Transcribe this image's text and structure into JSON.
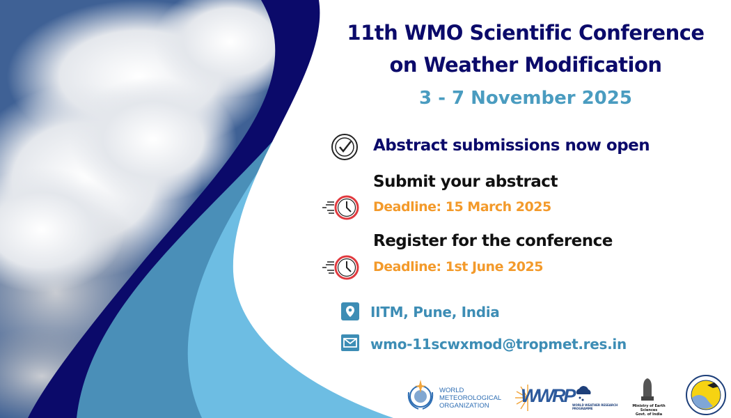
{
  "header": {
    "title_line1": "11th WMO Scientific Conference",
    "title_line2": "on Weather Modification",
    "dates": "3 - 7 November 2025"
  },
  "announcement": {
    "icon": "check-circle-icon",
    "text": "Abstract submissions now open"
  },
  "deadlines": [
    {
      "icon": "fast-clock-icon",
      "heading": "Submit your abstract",
      "deadline": "Deadline: 15 March 2025"
    },
    {
      "icon": "fast-clock-icon",
      "heading": "Register for the conference",
      "deadline": "Deadline: 1st June 2025"
    }
  ],
  "contact": {
    "location_icon": "map-pin-icon",
    "location": "IITM, Pune, India",
    "email_icon": "envelope-icon",
    "email": "wmo-11scwxmod@tropmet.res.in"
  },
  "logos": {
    "wmo": [
      "WORLD",
      "METEOROLOGICAL",
      "ORGANIZATION"
    ],
    "wwrp": "WWRP",
    "wwrp_sub": "WORLD WEATHER RESEARCH PROGRAMME",
    "moes": [
      "Ministry of Earth Sciences",
      "Govt. of India"
    ],
    "iitm": "Indian Institute of Tropical Meteorology"
  },
  "colors": {
    "navy": "#0b0a6a",
    "teal": "#4a9cc0",
    "orange": "#f39a2b",
    "light_blue": "#6dbde3",
    "mid_blue": "#4a8fb8"
  }
}
